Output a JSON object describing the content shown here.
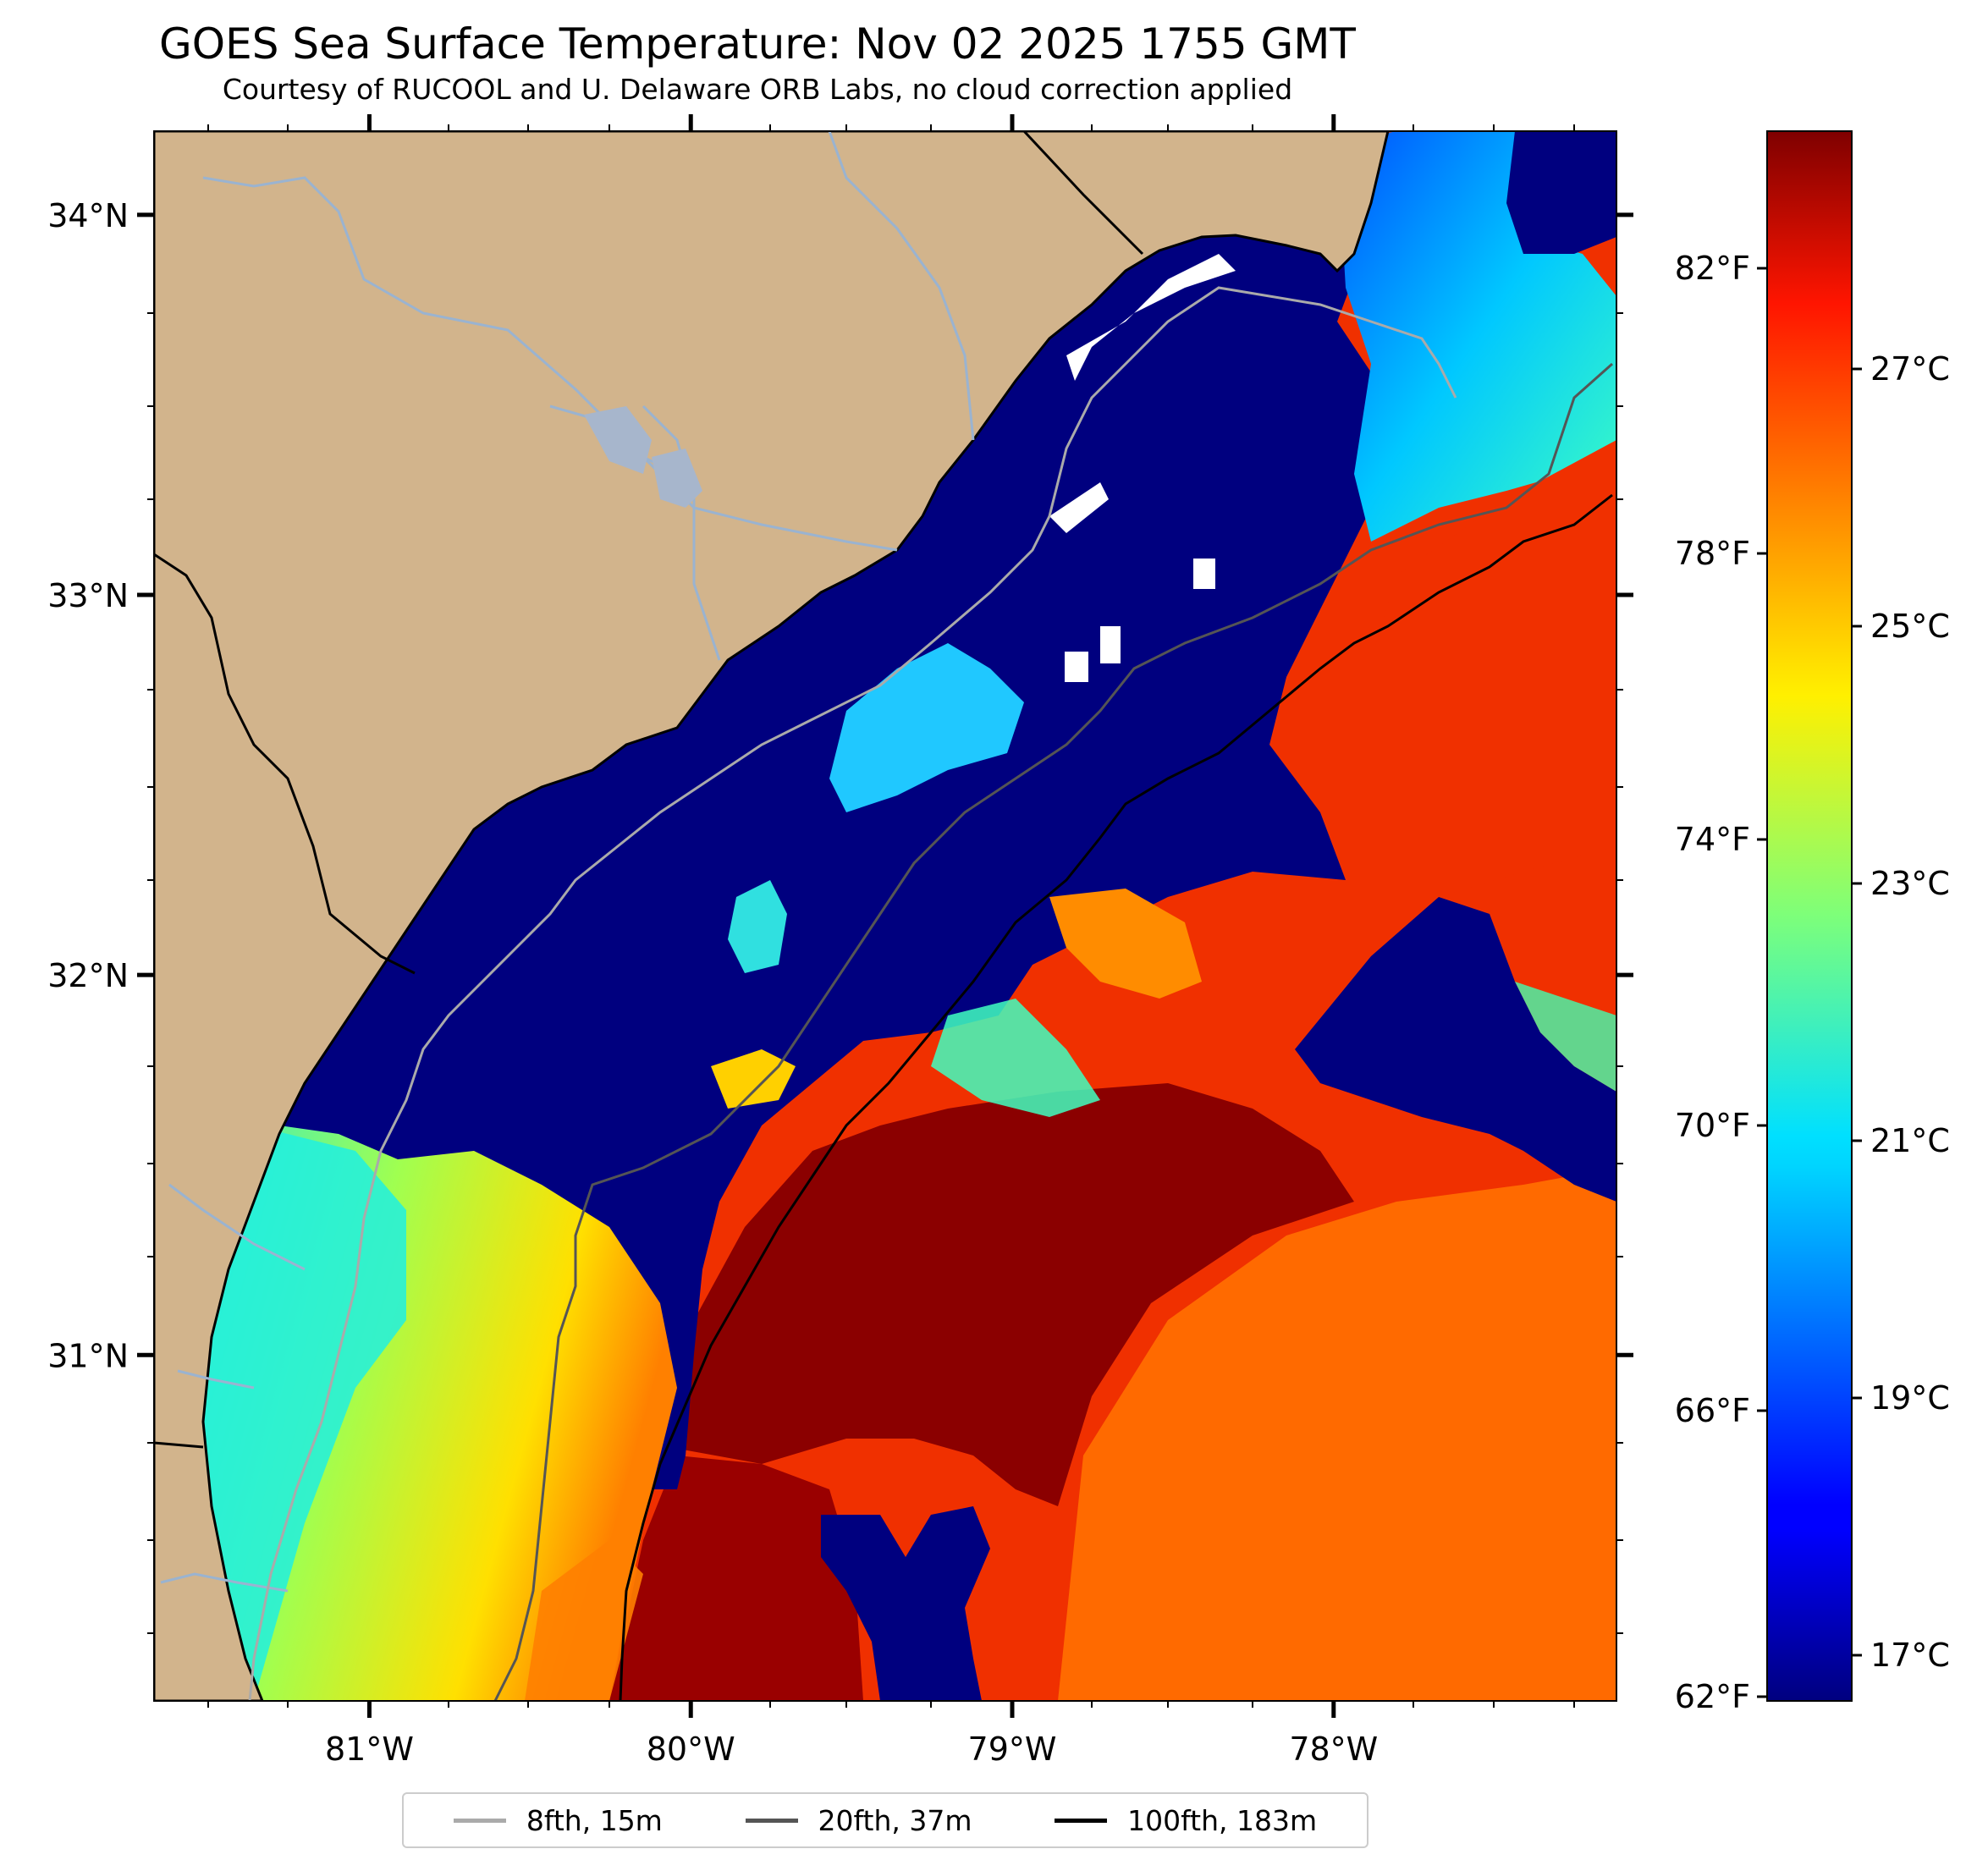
{
  "title": "GOES Sea Surface Temperature: Nov 02 2025 1755 GMT",
  "subtitle": "Courtesy of RUCOOL and U. Delaware ORB Labs, no cloud correction applied",
  "map": {
    "lon_range": [
      -81.67,
      -77.12
    ],
    "lat_range": [
      30.09,
      34.22
    ],
    "lat_ticks": [
      {
        "value": 34,
        "label": "34°N"
      },
      {
        "value": 33,
        "label": "33°N"
      },
      {
        "value": 32,
        "label": "32°N"
      },
      {
        "value": 31,
        "label": "31°N"
      }
    ],
    "lon_ticks": [
      {
        "value": -81,
        "label": "81°W"
      },
      {
        "value": -80,
        "label": "80°W"
      },
      {
        "value": -79,
        "label": "79°W"
      },
      {
        "value": -78,
        "label": "78°W"
      }
    ],
    "colors": {
      "land": "#d2b48c",
      "cloud_mask": "#ffffff",
      "rivers": "#9ab3d0",
      "coastline": "#000000"
    }
  },
  "colorbar": {
    "colormap": "jet",
    "celsius_ticks": [
      "27°C",
      "25°C",
      "23°C",
      "21°C",
      "19°C",
      "17°C"
    ],
    "fahrenheit_ticks": [
      "82°F",
      "78°F",
      "74°F",
      "70°F",
      "66°F",
      "62°F"
    ]
  },
  "legend": {
    "items": [
      {
        "label": "8fth, 15m",
        "color": "#aaaaaa"
      },
      {
        "label": "20fth, 37m",
        "color": "#555555"
      },
      {
        "label": "100fth, 183m",
        "color": "#000000"
      }
    ]
  }
}
